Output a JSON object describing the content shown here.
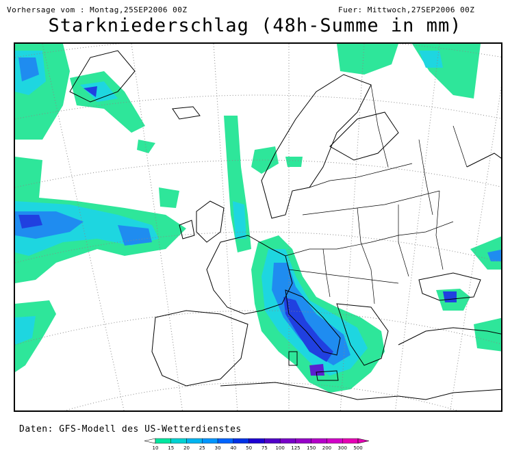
{
  "header": {
    "forecast_from": "Vorhersage vom : Montag,25SEP2006 00Z",
    "valid_for": "Fuer: Mittwoch,27SEP2006 00Z"
  },
  "title": "Starkniederschlag (48h-Summe in mm)",
  "source": "Daten: GFS-Modell des US-Wetterdienstes",
  "legend": {
    "ticks": [
      "10",
      "15",
      "20",
      "25",
      "30",
      "40",
      "50",
      "75",
      "100",
      "125",
      "150",
      "200",
      "300",
      "500"
    ],
    "colors": [
      "#00e6a0",
      "#00d2d2",
      "#00b4f0",
      "#0096ff",
      "#0064ff",
      "#0032e6",
      "#1e00d2",
      "#5000c8",
      "#7800c8",
      "#9600c8",
      "#b400c8",
      "#d200c8",
      "#e600b4"
    ]
  },
  "map": {
    "region": "Europe",
    "colors": {
      "light": "#2ee69a",
      "cyan": "#1ed6e0",
      "blue": "#1f8cf0",
      "deep": "#2040e0",
      "violet": "#5a20d0"
    }
  }
}
